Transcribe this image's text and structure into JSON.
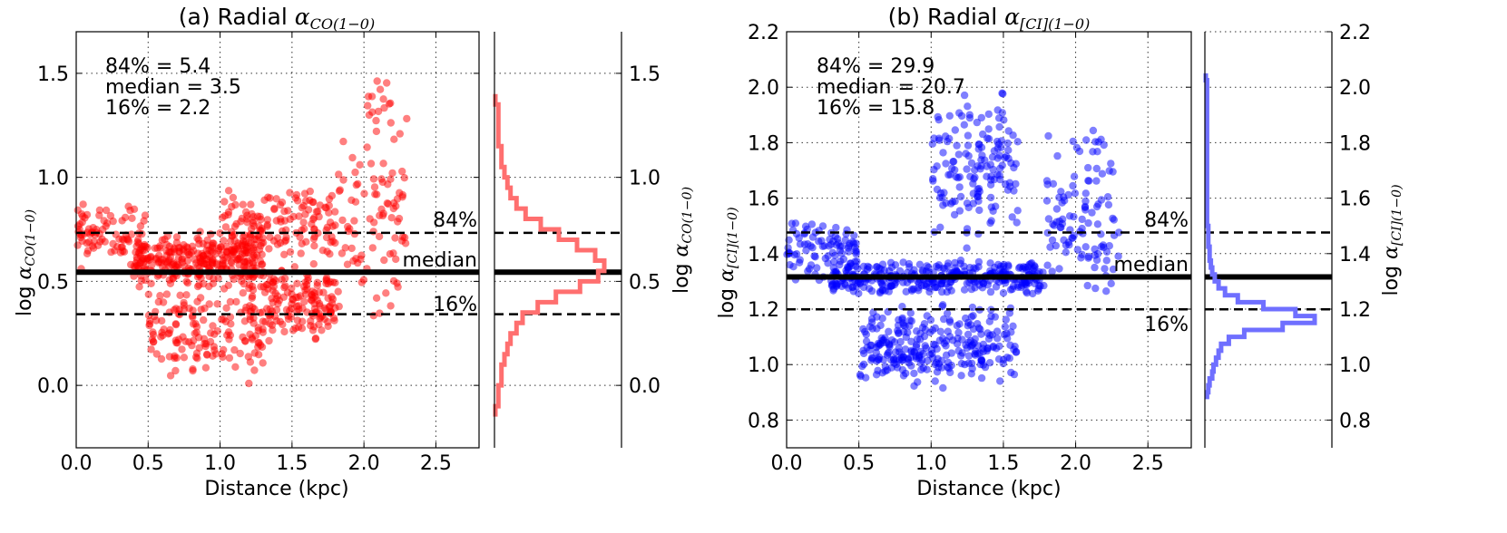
{
  "chart_data": [
    {
      "type": "scatter",
      "panel": "a",
      "title": "(a) Radial",
      "title_symbol": "α",
      "title_subscript": "CO(1−0)",
      "xlabel": "Distance (kpc)",
      "ylabel_prefix": "log",
      "ylabel_symbol": "α",
      "ylabel_subscript": "CO(1−0)",
      "xlim": [
        0.0,
        2.8
      ],
      "ylim": [
        -0.3,
        1.7
      ],
      "xticks": [
        "0.0",
        "0.5",
        "1.0",
        "1.5",
        "2.0",
        "2.5"
      ],
      "yticks": [
        "0.0",
        "0.5",
        "1.0",
        "1.5"
      ],
      "point_color": "#ff0000",
      "hist_color": "#ff6f6f",
      "stats": [
        "84% = 5.4",
        "median = 3.5",
        "16% = 2.2"
      ],
      "lines": [
        {
          "label": "84%",
          "value": 0.733,
          "style": "dashed"
        },
        {
          "label": "median",
          "value": 0.544,
          "style": "solid"
        },
        {
          "label": "16%",
          "value": 0.342,
          "style": "dashed"
        }
      ],
      "histogram": {
        "bin_width": 0.05,
        "bin_edges_start": -0.15,
        "counts": [
          0,
          1,
          1,
          2,
          2,
          3,
          4,
          5,
          7,
          9,
          14,
          20,
          28,
          34,
          36,
          33,
          27,
          21,
          15,
          10,
          7,
          5,
          4,
          3,
          2,
          2,
          1,
          1,
          1,
          1,
          0
        ]
      },
      "clusters": [
        {
          "x": [
            0.0,
            0.5
          ],
          "y": [
            0.55,
            0.9
          ],
          "n": 80
        },
        {
          "x": [
            0.4,
            1.3
          ],
          "y": [
            0.45,
            0.75
          ],
          "n": 300
        },
        {
          "x": [
            0.5,
            1.3
          ],
          "y": [
            0.0,
            0.5
          ],
          "n": 150
        },
        {
          "x": [
            1.2,
            1.8
          ],
          "y": [
            0.2,
            0.6
          ],
          "n": 160
        },
        {
          "x": [
            1.0,
            1.8
          ],
          "y": [
            0.6,
            0.95
          ],
          "n": 140
        },
        {
          "x": [
            1.8,
            2.3
          ],
          "y": [
            0.3,
            1.3
          ],
          "n": 90
        },
        {
          "x": [
            2.0,
            2.2
          ],
          "y": [
            1.2,
            1.55
          ],
          "n": 15
        }
      ]
    },
    {
      "type": "scatter",
      "panel": "b",
      "title": "(b) Radial",
      "title_symbol": "α",
      "title_subscript": "[CI](1−0)",
      "xlabel": "Distance (kpc)",
      "ylabel_prefix": "log",
      "ylabel_symbol": "α",
      "ylabel_subscript": "[CI](1−0)",
      "xlim": [
        0.0,
        2.8
      ],
      "ylim": [
        0.7,
        2.2
      ],
      "xticks": [
        "0.0",
        "0.5",
        "1.0",
        "1.5",
        "2.0",
        "2.5"
      ],
      "yticks": [
        "0.8",
        "1.0",
        "1.2",
        "1.4",
        "1.6",
        "1.8",
        "2.0",
        "2.2"
      ],
      "point_color": "#0000ff",
      "hist_color": "#6f6fff",
      "stats": [
        "84% = 29.9",
        "median = 20.7",
        "16% = 15.8"
      ],
      "lines": [
        {
          "label": "84%",
          "value": 1.476,
          "style": "dashed"
        },
        {
          "label": "median",
          "value": 1.316,
          "style": "solid"
        },
        {
          "label": "16%",
          "value": 1.199,
          "style": "dashed"
        }
      ],
      "histogram": {
        "bin_width": 0.025,
        "bin_edges_start": 0.875,
        "counts": [
          1,
          2,
          3,
          5,
          6,
          8,
          10,
          12,
          18,
          30,
          60,
          85,
          70,
          45,
          25,
          15,
          10,
          7,
          5,
          4,
          3,
          3,
          2,
          2,
          2,
          1,
          1,
          1,
          1,
          1,
          1,
          1,
          1,
          1,
          1,
          1,
          1,
          1,
          1,
          1,
          1,
          1,
          1,
          1,
          1,
          1,
          0
        ]
      },
      "clusters": [
        {
          "x": [
            0.0,
            0.5
          ],
          "y": [
            1.3,
            1.52
          ],
          "n": 90
        },
        {
          "x": [
            0.3,
            1.8
          ],
          "y": [
            1.25,
            1.38
          ],
          "n": 350
        },
        {
          "x": [
            0.5,
            1.6
          ],
          "y": [
            0.9,
            1.25
          ],
          "n": 220
        },
        {
          "x": [
            1.0,
            1.6
          ],
          "y": [
            1.4,
            2.0
          ],
          "n": 150
        },
        {
          "x": [
            1.8,
            2.3
          ],
          "y": [
            1.15,
            1.9
          ],
          "n": 110
        },
        {
          "x": [
            0.6,
            1.4
          ],
          "y": [
            0.95,
            1.1
          ],
          "n": 60
        }
      ]
    }
  ]
}
